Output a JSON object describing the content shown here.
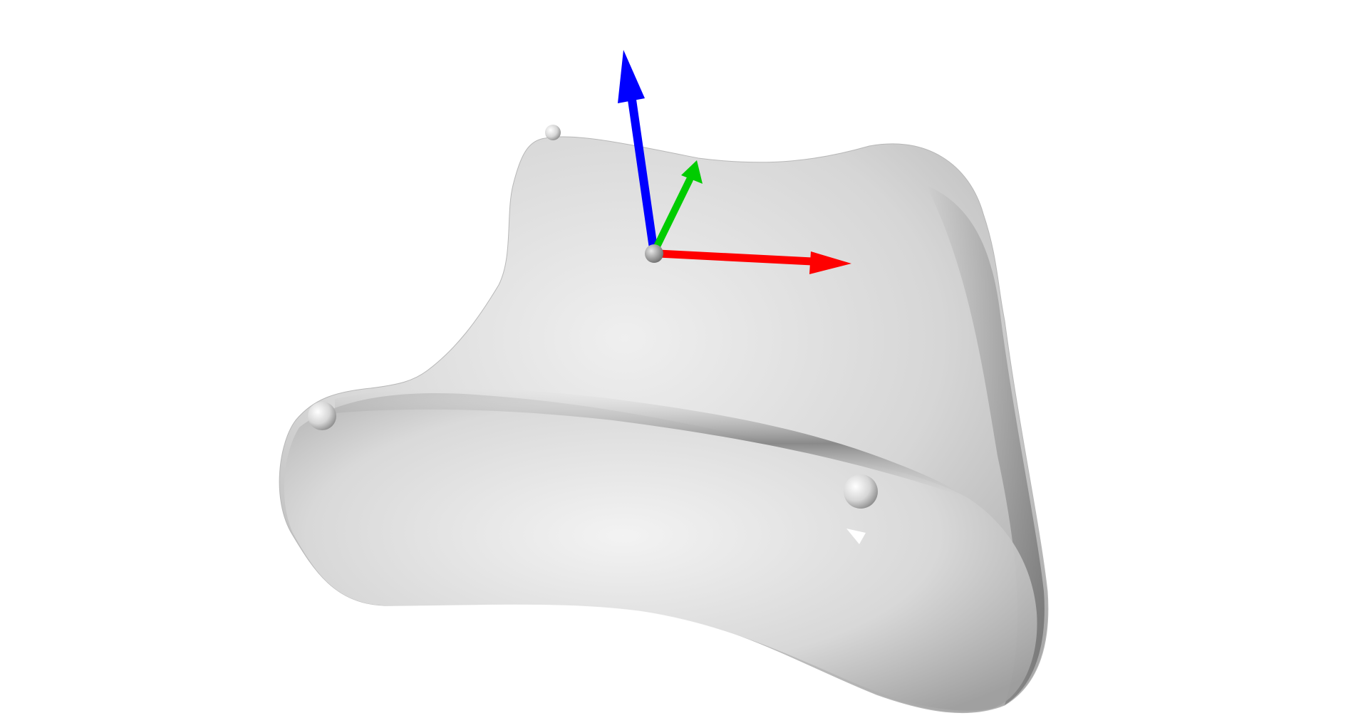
{
  "viewport": {
    "background": "#ffffff"
  },
  "mesh": {
    "base_color": "#cfcfcf",
    "highlight_color": "#f2f2f2",
    "shadow_color": "#8c8c8c"
  },
  "landmarks": {
    "count": 3,
    "color": "#d8d8d8"
  },
  "gizmo": {
    "axes": [
      {
        "name": "x-axis",
        "color": "#ff0000"
      },
      {
        "name": "y-axis",
        "color": "#00cc00"
      },
      {
        "name": "z-axis",
        "color": "#0000ff"
      }
    ],
    "origin_color": "#9a9a9a"
  }
}
